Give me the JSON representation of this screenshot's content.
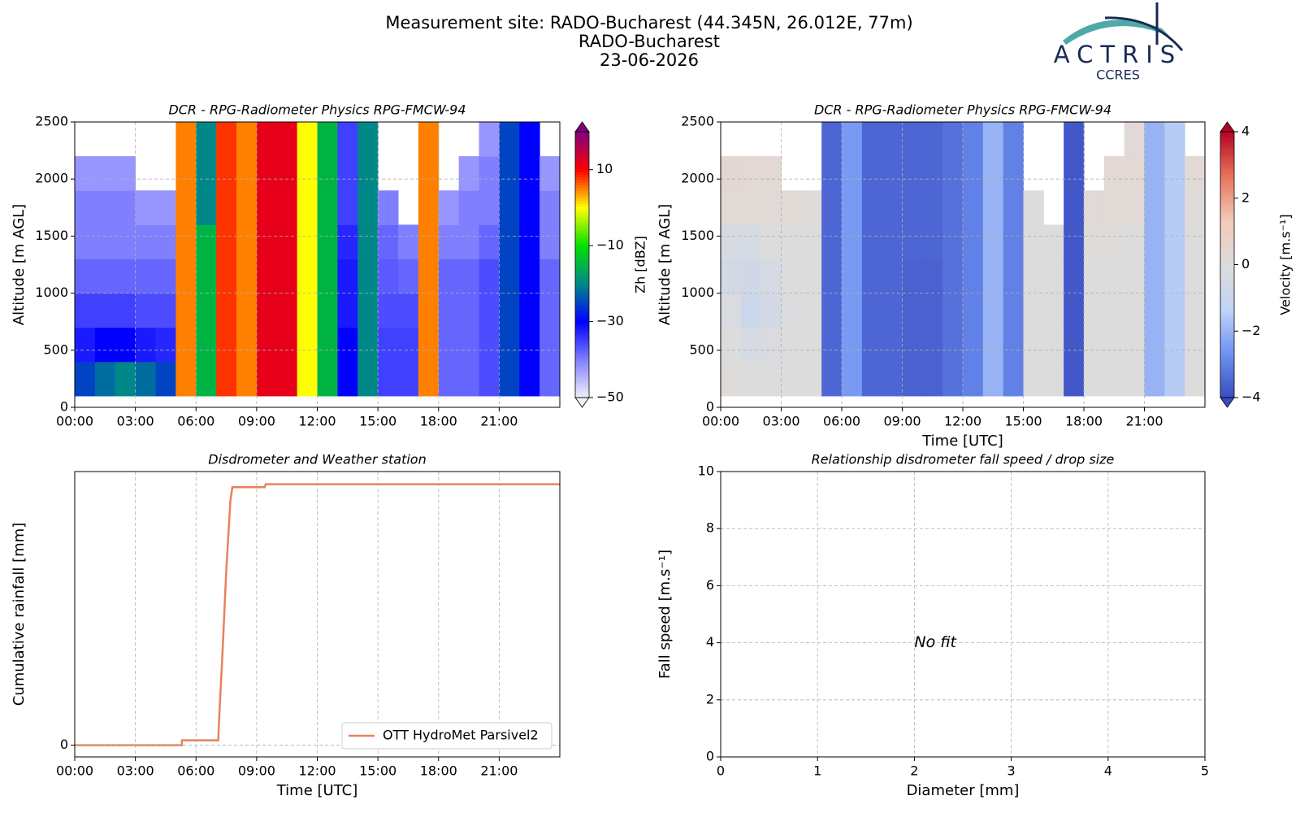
{
  "header": {
    "title": [
      "Measurement site: RADO-Bucharest (44.345N, 26.012E, 77m)",
      "RADO-Bucharest",
      "23-06-2026"
    ],
    "logo": "ACTRIS",
    "logo_sub": "CCRES"
  },
  "chart_data": [
    {
      "type": "heatmap",
      "title": "DCR - RPG-Radiometer Physics RPG-FMCW-94",
      "ylabel": "Altitude [m AGL]",
      "xlim": [
        0,
        24
      ],
      "xticks": [
        {
          "value": 0,
          "label": "00:00"
        },
        {
          "value": 3,
          "label": "03:00"
        },
        {
          "value": 6,
          "label": "06:00"
        },
        {
          "value": 9,
          "label": "09:00"
        },
        {
          "value": 12,
          "label": "12:00"
        },
        {
          "value": 15,
          "label": "15:00"
        },
        {
          "value": 18,
          "label": "18:00"
        },
        {
          "value": 21,
          "label": "21:00"
        }
      ],
      "ylim": [
        0,
        2500
      ],
      "yticks": [
        0,
        500,
        1000,
        1500,
        2000,
        2500
      ],
      "grid": true,
      "x_bins": [
        0,
        1,
        2,
        3,
        4,
        5,
        6,
        7,
        8,
        9,
        10,
        11,
        12,
        13,
        14,
        15,
        16,
        17,
        18,
        19,
        20,
        21,
        22,
        23,
        24
      ],
      "y_bins": [
        100,
        400,
        700,
        1000,
        1300,
        1600,
        1900,
        2200,
        2500
      ],
      "values": [
        [
          -25,
          -32,
          -35,
          -38,
          -40,
          -40,
          -42,
          null
        ],
        [
          -22,
          -30,
          -35,
          -38,
          -40,
          -40,
          -42,
          null
        ],
        [
          -20,
          -30,
          -35,
          -38,
          -40,
          -40,
          -42,
          null
        ],
        [
          -22,
          -32,
          -36,
          -38,
          -40,
          -42,
          null,
          null
        ],
        [
          -25,
          -33,
          -36,
          -38,
          -40,
          -42,
          null,
          null
        ],
        [
          5,
          5,
          5,
          5,
          5,
          5,
          5,
          5
        ],
        [
          -15,
          -15,
          -15,
          -15,
          -15,
          -20,
          -20,
          -20
        ],
        [
          8,
          8,
          8,
          8,
          8,
          8,
          8,
          8
        ],
        [
          5,
          5,
          5,
          5,
          5,
          5,
          5,
          5
        ],
        [
          12,
          12,
          12,
          12,
          12,
          12,
          12,
          12
        ],
        [
          12,
          12,
          12,
          12,
          12,
          12,
          12,
          12
        ],
        [
          0,
          0,
          0,
          0,
          0,
          0,
          0,
          0
        ],
        [
          -15,
          -15,
          -15,
          -15,
          -15,
          -15,
          -15,
          -15
        ],
        [
          -30,
          -30,
          -32,
          -32,
          -33,
          -35,
          -35,
          -35
        ],
        [
          -20,
          -20,
          -20,
          -20,
          -20,
          -20,
          -20,
          -20
        ],
        [
          -35,
          -35,
          -36,
          -37,
          -38,
          -40,
          null,
          null
        ],
        [
          -35,
          -35,
          -36,
          -38,
          -40,
          null,
          null,
          null
        ],
        [
          5,
          5,
          5,
          5,
          5,
          5,
          5,
          5
        ],
        [
          -38,
          -38,
          -38,
          -38,
          -40,
          -42,
          null,
          null
        ],
        [
          -38,
          -38,
          -38,
          -38,
          -40,
          -40,
          -42,
          null
        ],
        [
          -36,
          -36,
          -36,
          -36,
          -38,
          -40,
          -40,
          -42
        ],
        [
          -25,
          -25,
          -25,
          -25,
          -25,
          -25,
          -25,
          -25
        ],
        [
          -30,
          -30,
          -30,
          -30,
          -30,
          -30,
          -30,
          -30
        ],
        [
          -38,
          -38,
          -38,
          -38,
          -40,
          -40,
          -42,
          null
        ]
      ],
      "colorbar": {
        "label": "Zh [dBZ]",
        "clim": [
          -50,
          20
        ],
        "ticks": [
          {
            "value": -50,
            "label": "−50"
          },
          {
            "value": -30,
            "label": "−30"
          },
          {
            "value": -10,
            "label": "−10"
          },
          10
        ],
        "colors": [
          "#f2f0f8",
          "#8080ff",
          "#0000ff",
          "#008888",
          "#00e000",
          "#ffff00",
          "#ff0000",
          "#800080"
        ]
      }
    },
    {
      "type": "heatmap",
      "title": "DCR - RPG-Radiometer Physics RPG-FMCW-94",
      "ylabel": "Altitude [m AGL]",
      "xlabel": "Time [UTC]",
      "xlim": [
        0,
        24
      ],
      "xticks": [
        {
          "value": 0,
          "label": "00:00"
        },
        {
          "value": 3,
          "label": "03:00"
        },
        {
          "value": 6,
          "label": "06:00"
        },
        {
          "value": 9,
          "label": "09:00"
        },
        {
          "value": 12,
          "label": "12:00"
        },
        {
          "value": 15,
          "label": "15:00"
        },
        {
          "value": 18,
          "label": "18:00"
        },
        {
          "value": 21,
          "label": "21:00"
        }
      ],
      "ylim": [
        0,
        2500
      ],
      "yticks": [
        0,
        500,
        1000,
        1500,
        2000,
        2500
      ],
      "grid": true,
      "x_bins": [
        0,
        1,
        2,
        3,
        4,
        5,
        6,
        7,
        8,
        9,
        10,
        11,
        12,
        13,
        14,
        15,
        16,
        17,
        18,
        19,
        20,
        21,
        22,
        23,
        24
      ],
      "y_bins": [
        100,
        400,
        700,
        1000,
        1300,
        1600,
        1900,
        2200,
        2500
      ],
      "values": [
        [
          0.1,
          0,
          -0.2,
          -0.5,
          -0.3,
          0.3,
          0.4,
          null
        ],
        [
          0,
          -0.3,
          -0.8,
          -0.6,
          -0.3,
          0.2,
          0.3,
          null
        ],
        [
          0,
          -0.2,
          -0.5,
          -0.3,
          0,
          0.2,
          0.3,
          null
        ],
        [
          0,
          0,
          -0.1,
          0,
          0,
          0.2,
          null,
          null
        ],
        [
          0,
          0,
          0,
          0,
          0,
          0.1,
          null,
          null
        ],
        [
          -3.5,
          -3.5,
          -3.5,
          -3.5,
          -3.5,
          -3.5,
          -3.5,
          -3.5
        ],
        [
          -2.5,
          -2.5,
          -2.5,
          -2.5,
          -2.5,
          -2.5,
          -2.5,
          -2.5
        ],
        [
          -3.5,
          -3.5,
          -3.5,
          -3.5,
          -3.5,
          -3.5,
          -3.5,
          -3.5
        ],
        [
          -3.5,
          -3.5,
          -3.5,
          -3.5,
          -3.5,
          -3.5,
          -3.5,
          -3.5
        ],
        [
          -3.6,
          -3.6,
          -3.6,
          -3.6,
          -3.5,
          -3.5,
          -3.5,
          -3.5
        ],
        [
          -3.6,
          -3.6,
          -3.6,
          -3.6,
          -3.5,
          -3.5,
          -3.5,
          -3.5
        ],
        [
          -3.3,
          -3.3,
          -3.3,
          -3.3,
          -3.3,
          -3.3,
          -3.3,
          -3.3
        ],
        [
          -3,
          -3,
          -3,
          -3,
          -3,
          -3,
          -3,
          -3
        ],
        [
          -2,
          -2,
          -2,
          -2,
          -2,
          -2,
          -2,
          -2
        ],
        [
          -3,
          -3,
          -3,
          -3,
          -3,
          -3,
          -3,
          -3
        ],
        [
          0,
          0,
          0,
          -0.1,
          0,
          0,
          null,
          null
        ],
        [
          0,
          0,
          0,
          0,
          0,
          null,
          null,
          null
        ],
        [
          -3.8,
          -3.8,
          -3.8,
          -3.8,
          -3.8,
          -3.8,
          -3.8,
          -3.8
        ],
        [
          0,
          0,
          0,
          0,
          0.1,
          0.2,
          null,
          null
        ],
        [
          0,
          0,
          0,
          0,
          0.1,
          0.2,
          0.3,
          null
        ],
        [
          0,
          0,
          0,
          0,
          0,
          0.2,
          0.3,
          0.2
        ],
        [
          -2,
          -2,
          -2,
          -2,
          -2,
          -2,
          -2,
          -2
        ],
        [
          -1.5,
          -1.5,
          -1.5,
          -1.5,
          -1.5,
          -1.5,
          -1.5,
          -1.5
        ],
        [
          0,
          0,
          0,
          0,
          0,
          0.1,
          0.2,
          null
        ]
      ],
      "colorbar": {
        "label": "Velocity [m.s⁻¹]",
        "clim": [
          -4,
          4
        ],
        "ticks": [
          {
            "value": -4,
            "label": "−4"
          },
          {
            "value": -2,
            "label": "−2"
          },
          0,
          2,
          4
        ],
        "colors": [
          "#3a4cc0",
          "#6f92f3",
          "#c0d4f5",
          "#dddcdc",
          "#f2cbb7",
          "#e7745b",
          "#b40426"
        ]
      }
    },
    {
      "type": "line",
      "title": "Disdrometer and Weather station",
      "ylabel": "Cumulative rainfall [mm]",
      "xlabel": "Time [UTC]",
      "xlim": [
        0,
        24
      ],
      "xticks": [
        {
          "value": 0,
          "label": "00:00"
        },
        {
          "value": 3,
          "label": "03:00"
        },
        {
          "value": 6,
          "label": "06:00"
        },
        {
          "value": 9,
          "label": "09:00"
        },
        {
          "value": 12,
          "label": "12:00"
        },
        {
          "value": 15,
          "label": "15:00"
        },
        {
          "value": 18,
          "label": "18:00"
        },
        {
          "value": 21,
          "label": "21:00"
        }
      ],
      "ylim": [
        -0.6,
        14
      ],
      "yticks": [
        0
      ],
      "grid": true,
      "legend": "lower right",
      "x": [
        0,
        5.3,
        5.3,
        7.1,
        7.15,
        7.3,
        7.5,
        7.7,
        7.8,
        9.4,
        9.45,
        24
      ],
      "series": [
        {
          "name": "OTT HydroMet Parsivel2",
          "color": "#e8825a",
          "values": [
            0,
            0,
            0.25,
            0.25,
            1.5,
            4.5,
            9,
            12.5,
            13.2,
            13.2,
            13.35,
            13.35
          ]
        }
      ]
    },
    {
      "type": "scatter",
      "title": "Relationship disdrometer fall speed / drop size",
      "ylabel": "Fall speed [m.s⁻¹]",
      "xlabel": "Diameter [mm]",
      "xlim": [
        0,
        5
      ],
      "xticks": [
        0,
        1,
        2,
        3,
        4,
        5
      ],
      "ylim": [
        0,
        10
      ],
      "yticks": [
        0,
        2,
        4,
        6,
        8,
        10
      ],
      "grid": true,
      "annotation": {
        "text": "No fit",
        "x": 2,
        "y": 4
      }
    }
  ]
}
